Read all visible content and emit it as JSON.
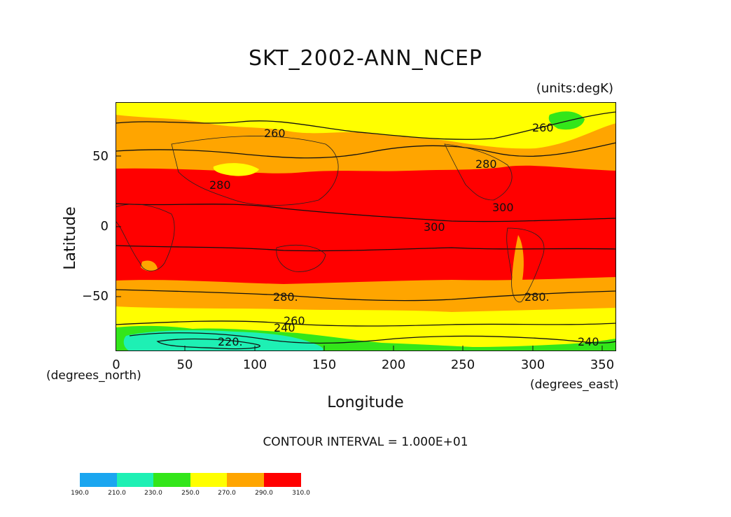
{
  "title": "SKT_2002-ANN_NCEP",
  "units": "(units:degK)",
  "y_axis": {
    "label": "Latitude",
    "unit_label": "(degrees_north)",
    "ticks": [
      "50",
      "0",
      "−50"
    ]
  },
  "x_axis": {
    "label": "Longitude",
    "unit_label": "(degrees_east)",
    "ticks": [
      "0",
      "50",
      "100",
      "150",
      "200",
      "250",
      "300",
      "350"
    ]
  },
  "contour_interval": "CONTOUR INTERVAL = 1.000E+01",
  "contour_labels": [
    "260",
    "260",
    "280",
    "280",
    "300",
    "300",
    "280.",
    "280.",
    "260",
    "240",
    "220.",
    "240"
  ],
  "colorbar": {
    "labels": [
      "190.0",
      "210.0",
      "230.0",
      "250.0",
      "270.0",
      "290.0",
      "310.0"
    ],
    "colors": [
      "#1aa6f0",
      "#1ef0b4",
      "#33e61a",
      "#ffff00",
      "#ffa500",
      "#ff0000"
    ]
  },
  "map_colors": {
    "very_cold": "#1ef0b4",
    "cold": "#33e61a",
    "cool": "#ffff00",
    "mild": "#ffa500",
    "warm": "#ff0000"
  }
}
